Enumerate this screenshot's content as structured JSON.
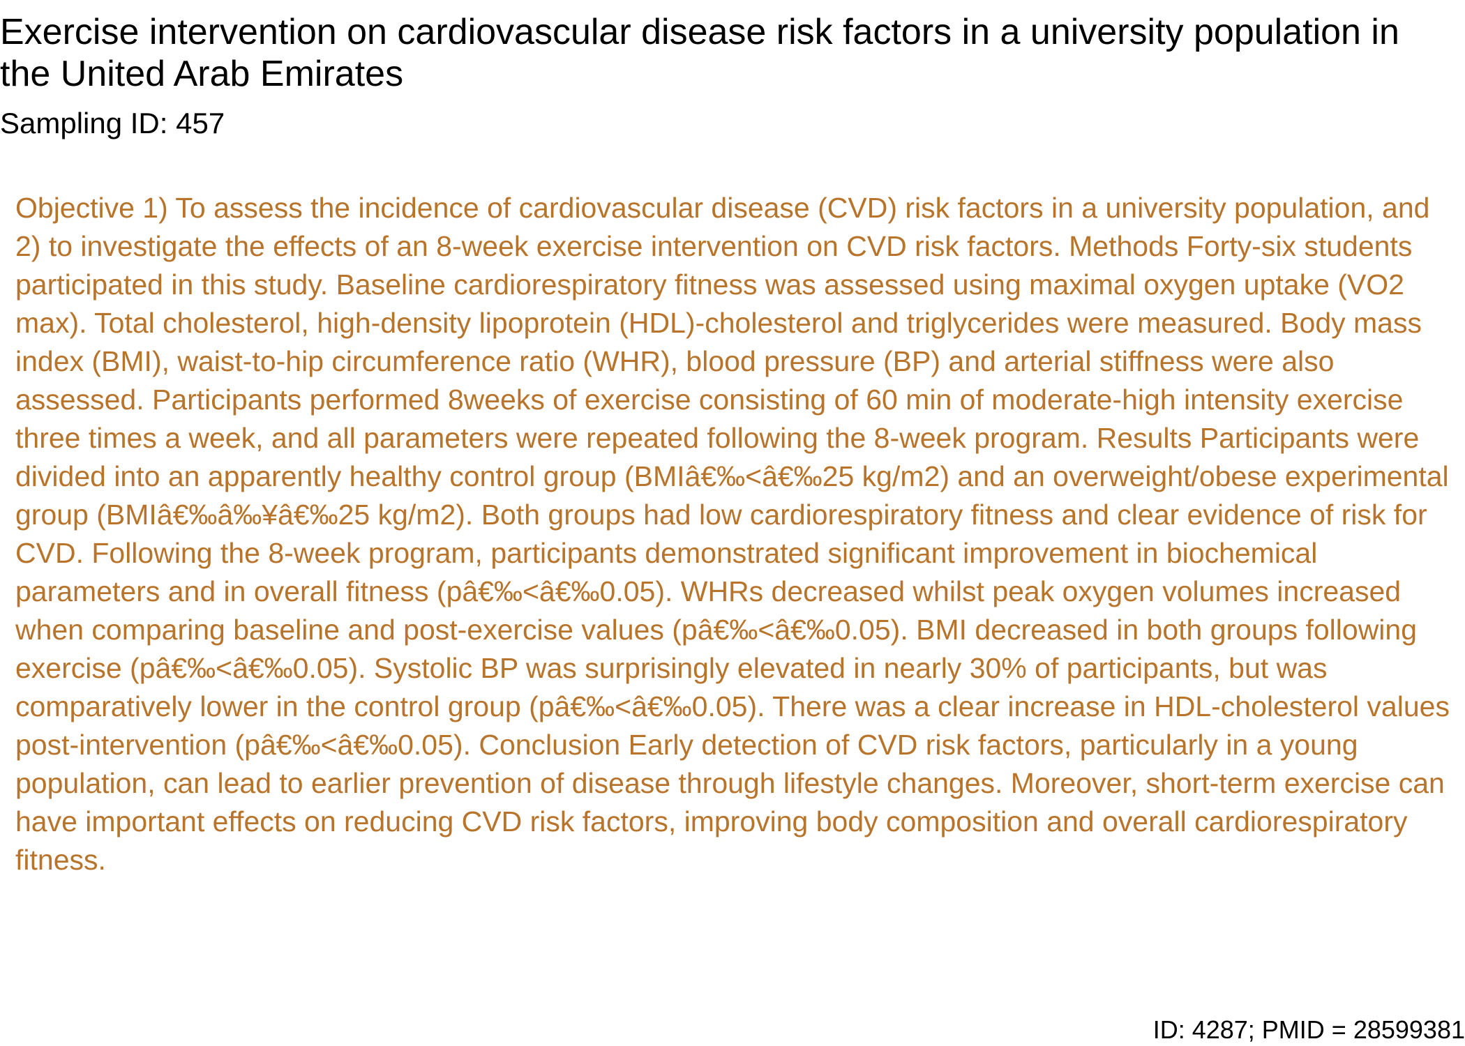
{
  "document": {
    "title": "Exercise intervention on cardiovascular disease risk factors in a university population in the United Arab Emirates",
    "sampling_id": "Sampling ID: 457",
    "abstract": "Objective 1) To assess the incidence of cardiovascular disease (CVD) risk factors in a university population, and 2) to investigate the effects of an 8-week exercise intervention on CVD risk factors. Methods Forty-six students participated in this study. Baseline cardiorespiratory fitness was assessed using maximal oxygen uptake (VO2 max). Total cholesterol, high-density lipoprotein (HDL)-cholesterol and triglycerides were measured. Body mass index (BMI), waist-to-hip circumference ratio (WHR), blood pressure (BP) and arterial stiffness were also assessed. Participants performed 8weeks of exercise consisting of 60 min of moderate-high intensity exercise three times a week, and all parameters were repeated following the 8-week program. Results Participants were divided into an apparently healthy control group (BMIâ€‰<â€‰25 kg/m2) and an overweight/obese experimental group (BMIâ€‰â‰¥â€‰25 kg/m2). Both groups had low cardiorespiratory fitness and clear evidence of risk for CVD. Following the 8-week program, participants demonstrated significant improvement in biochemical parameters and in overall fitness (pâ€‰<â€‰0.05). WHRs decreased whilst peak oxygen volumes increased when comparing baseline and post-exercise values (pâ€‰<â€‰0.05). BMI decreased in both groups following exercise (pâ€‰<â€‰0.05). Systolic BP was surprisingly elevated in nearly 30% of participants, but was comparatively lower in the control group (pâ€‰<â€‰0.05). There was a clear increase in HDL-cholesterol values post-intervention (pâ€‰<â€‰0.05). Conclusion Early detection of CVD risk factors, particularly in a young population, can lead to earlier prevention of disease through lifestyle changes. Moreover, short-term exercise can have important effects on reducing CVD risk factors, improving body composition and overall cardiorespiratory fitness.",
    "footer": "ID: 4287; PMID = 28599381"
  },
  "colors": {
    "title_text": "#000000",
    "abstract_text": "#b8742a",
    "background": "#ffffff"
  }
}
